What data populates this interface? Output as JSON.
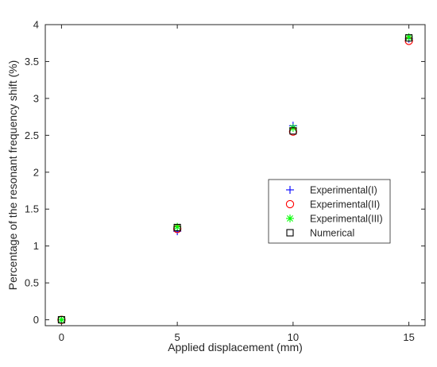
{
  "chart_data": {
    "type": "scatter",
    "xlabel": "Applied displacement (mm)",
    "ylabel": "Percentage of the resonant frequency shift (%)",
    "xlim": [
      -0.7,
      15.7
    ],
    "ylim": [
      -0.08,
      4
    ],
    "xticks": [
      0,
      5,
      10,
      15
    ],
    "yticks": [
      0,
      0.5,
      1,
      1.5,
      2,
      2.5,
      3,
      3.5,
      4
    ],
    "xtick_labels": [
      "0",
      "5",
      "10",
      "15"
    ],
    "ytick_labels": [
      "0",
      "0.5",
      "1",
      "1.5",
      "2",
      "2.5",
      "3",
      "3.5",
      "4"
    ],
    "grid": false,
    "box": true,
    "legend_position": "center-right",
    "series": [
      {
        "name": "Experimental(I)",
        "marker": "plus",
        "color": "#0000ff",
        "x": [
          0,
          5,
          10,
          15
        ],
        "y": [
          0,
          1.2,
          2.63,
          3.81
        ]
      },
      {
        "name": "Experimental(II)",
        "marker": "circle",
        "color": "#ff0000",
        "x": [
          0,
          5,
          10,
          15
        ],
        "y": [
          0,
          1.23,
          2.55,
          3.78
        ]
      },
      {
        "name": "Experimental(III)",
        "marker": "asterisk",
        "color": "#00ff00",
        "x": [
          0,
          5,
          10,
          15
        ],
        "y": [
          0,
          1.26,
          2.6,
          3.83
        ]
      },
      {
        "name": "Numerical",
        "marker": "square",
        "color": "#000000",
        "x": [
          0,
          5,
          10,
          15
        ],
        "y": [
          0,
          1.25,
          2.56,
          3.82
        ]
      }
    ]
  }
}
